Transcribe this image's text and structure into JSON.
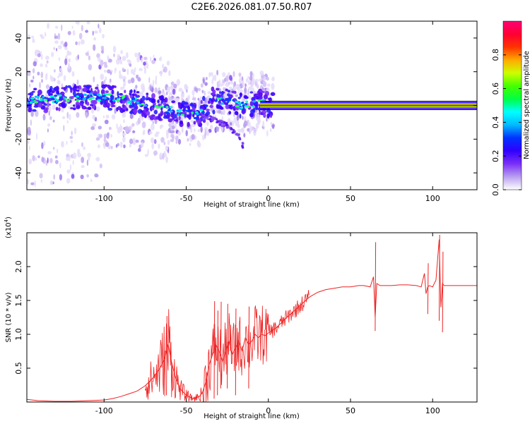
{
  "title": "C2E6.2026.081.07.50.R07",
  "chart_data": [
    {
      "id": "spectrogram",
      "type": "heatmap",
      "xlabel": "Height of straight line (km)",
      "ylabel": "Frequency (Hz)",
      "xlim": [
        -147,
        127
      ],
      "ylim": [
        -50,
        50
      ],
      "xticks": [
        -100,
        -50,
        0,
        50,
        100
      ],
      "yticks": [
        -40,
        -20,
        0,
        20,
        40
      ],
      "xtick_labels": [
        "-100",
        "-50",
        "0",
        "50",
        "100"
      ],
      "ytick_labels": [
        "-40",
        "-20",
        "0",
        "20",
        "40"
      ],
      "colorbar": {
        "label": "Normalized spectral amplitude",
        "range": [
          0,
          1
        ],
        "ticks": [
          0.0,
          0.2,
          0.4,
          0.6,
          0.8
        ],
        "tick_labels": [
          "0.0",
          "0.2",
          "0.4",
          "0.6",
          "0.8"
        ],
        "colors": [
          "#ffffff",
          "#b99ff0",
          "#7b2ff7",
          "#3000ff",
          "#0033ff",
          "#00bbff",
          "#00ffff",
          "#00ff44",
          "#44ff00",
          "#ccff00",
          "#ffaa00",
          "#ff3300",
          "#ff0033",
          "#ff0077"
        ]
      },
      "carrier_track": {
        "x": [
          -147,
          -130,
          -115,
          -100,
          -90,
          -80,
          -70,
          -60,
          -50,
          -42,
          -35,
          -28,
          -20,
          -15,
          -10,
          -5,
          0,
          10,
          20,
          30,
          40,
          50,
          58,
          60,
          62,
          70,
          80,
          90,
          95,
          100,
          102,
          104,
          106,
          110,
          120,
          127
        ],
        "y": [
          3,
          4,
          5,
          5,
          4,
          2,
          -1,
          -3,
          -5,
          -6,
          3,
          3,
          1,
          0,
          1,
          2,
          0,
          0,
          0,
          0,
          0,
          0,
          0,
          1,
          0,
          0,
          0,
          0,
          0,
          0,
          1,
          -2,
          0,
          0,
          0,
          0
        ]
      },
      "secondary_track": {
        "x": [
          -40,
          -35,
          -30,
          -25,
          -20,
          -17,
          -15
        ],
        "y": [
          -6,
          -8,
          -10,
          -12,
          -16,
          -20,
          -25
        ]
      }
    },
    {
      "id": "snr",
      "type": "line",
      "xlabel": "Height of straight line (km)",
      "ylabel": "SNR (10 * v/v)",
      "multiplier_label": "(x10",
      "multiplier_exp": "4",
      "multiplier_close": ")",
      "xlim": [
        -147,
        127
      ],
      "ylim": [
        0,
        2.5
      ],
      "xticks": [
        -100,
        -50,
        0,
        50,
        100
      ],
      "yticks": [
        0.5,
        1.0,
        1.5,
        2.0
      ],
      "xtick_labels": [
        "-100",
        "-50",
        "0",
        "50",
        "100"
      ],
      "ytick_labels": [
        "0.5",
        "1.0",
        "1.5",
        "2.0"
      ],
      "line_color": "#ee2222",
      "series": [
        {
          "name": "SNR",
          "x": [
            -147,
            -140,
            -130,
            -120,
            -110,
            -100,
            -95,
            -90,
            -85,
            -80,
            -75,
            -70,
            -66,
            -63,
            -61,
            -59,
            -57,
            -54,
            -50,
            -46,
            -42,
            -40,
            -38,
            -36,
            -34,
            -32,
            -30,
            -28,
            -26,
            -24,
            -22,
            -20,
            -18,
            -16,
            -14,
            -12,
            -10,
            -8,
            -6,
            -4,
            -2,
            0,
            5,
            10,
            15,
            20,
            25,
            30,
            35,
            40,
            45,
            50,
            55,
            58,
            62,
            64,
            65,
            66,
            68,
            70,
            75,
            80,
            85,
            90,
            93,
            95,
            96,
            97,
            98,
            100,
            102,
            103,
            104,
            105,
            106,
            107,
            108,
            110,
            115,
            120,
            127
          ],
          "y": [
            0.04,
            0.02,
            0.01,
            0.01,
            0.02,
            0.03,
            0.05,
            0.08,
            0.12,
            0.16,
            0.24,
            0.36,
            0.5,
            0.65,
            0.85,
            0.6,
            0.4,
            0.2,
            0.1,
            0.05,
            0.08,
            0.15,
            0.3,
            0.55,
            0.7,
            0.85,
            0.75,
            0.6,
            0.75,
            0.9,
            0.7,
            0.8,
            0.9,
            0.75,
            0.95,
            0.85,
            0.9,
            1.0,
            0.95,
            1.0,
            0.98,
            1.02,
            1.1,
            1.22,
            1.33,
            1.44,
            1.55,
            1.62,
            1.66,
            1.68,
            1.7,
            1.7,
            1.72,
            1.72,
            1.7,
            1.85,
            1.25,
            1.75,
            1.72,
            1.72,
            1.72,
            1.73,
            1.73,
            1.72,
            1.7,
            1.9,
            1.6,
            1.7,
            1.72,
            1.7,
            1.8,
            2.1,
            2.4,
            1.4,
            1.75,
            1.72,
            1.72,
            1.72,
            1.72,
            1.72,
            1.72
          ]
        }
      ],
      "spikes": {
        "x": [
          -62,
          -33,
          -31,
          -29,
          -25,
          -20,
          -12,
          65,
          97,
          104,
          106
        ],
        "high": [
          1.27,
          1.49,
          1.35,
          1.48,
          1.45,
          1.38,
          1.41,
          2.36,
          2.05,
          2.47,
          2.22
        ],
        "low": [
          0.1,
          0.05,
          0.1,
          0.2,
          0.2,
          0.1,
          0.2,
          1.05,
          1.3,
          1.2,
          1.03
        ]
      }
    }
  ]
}
